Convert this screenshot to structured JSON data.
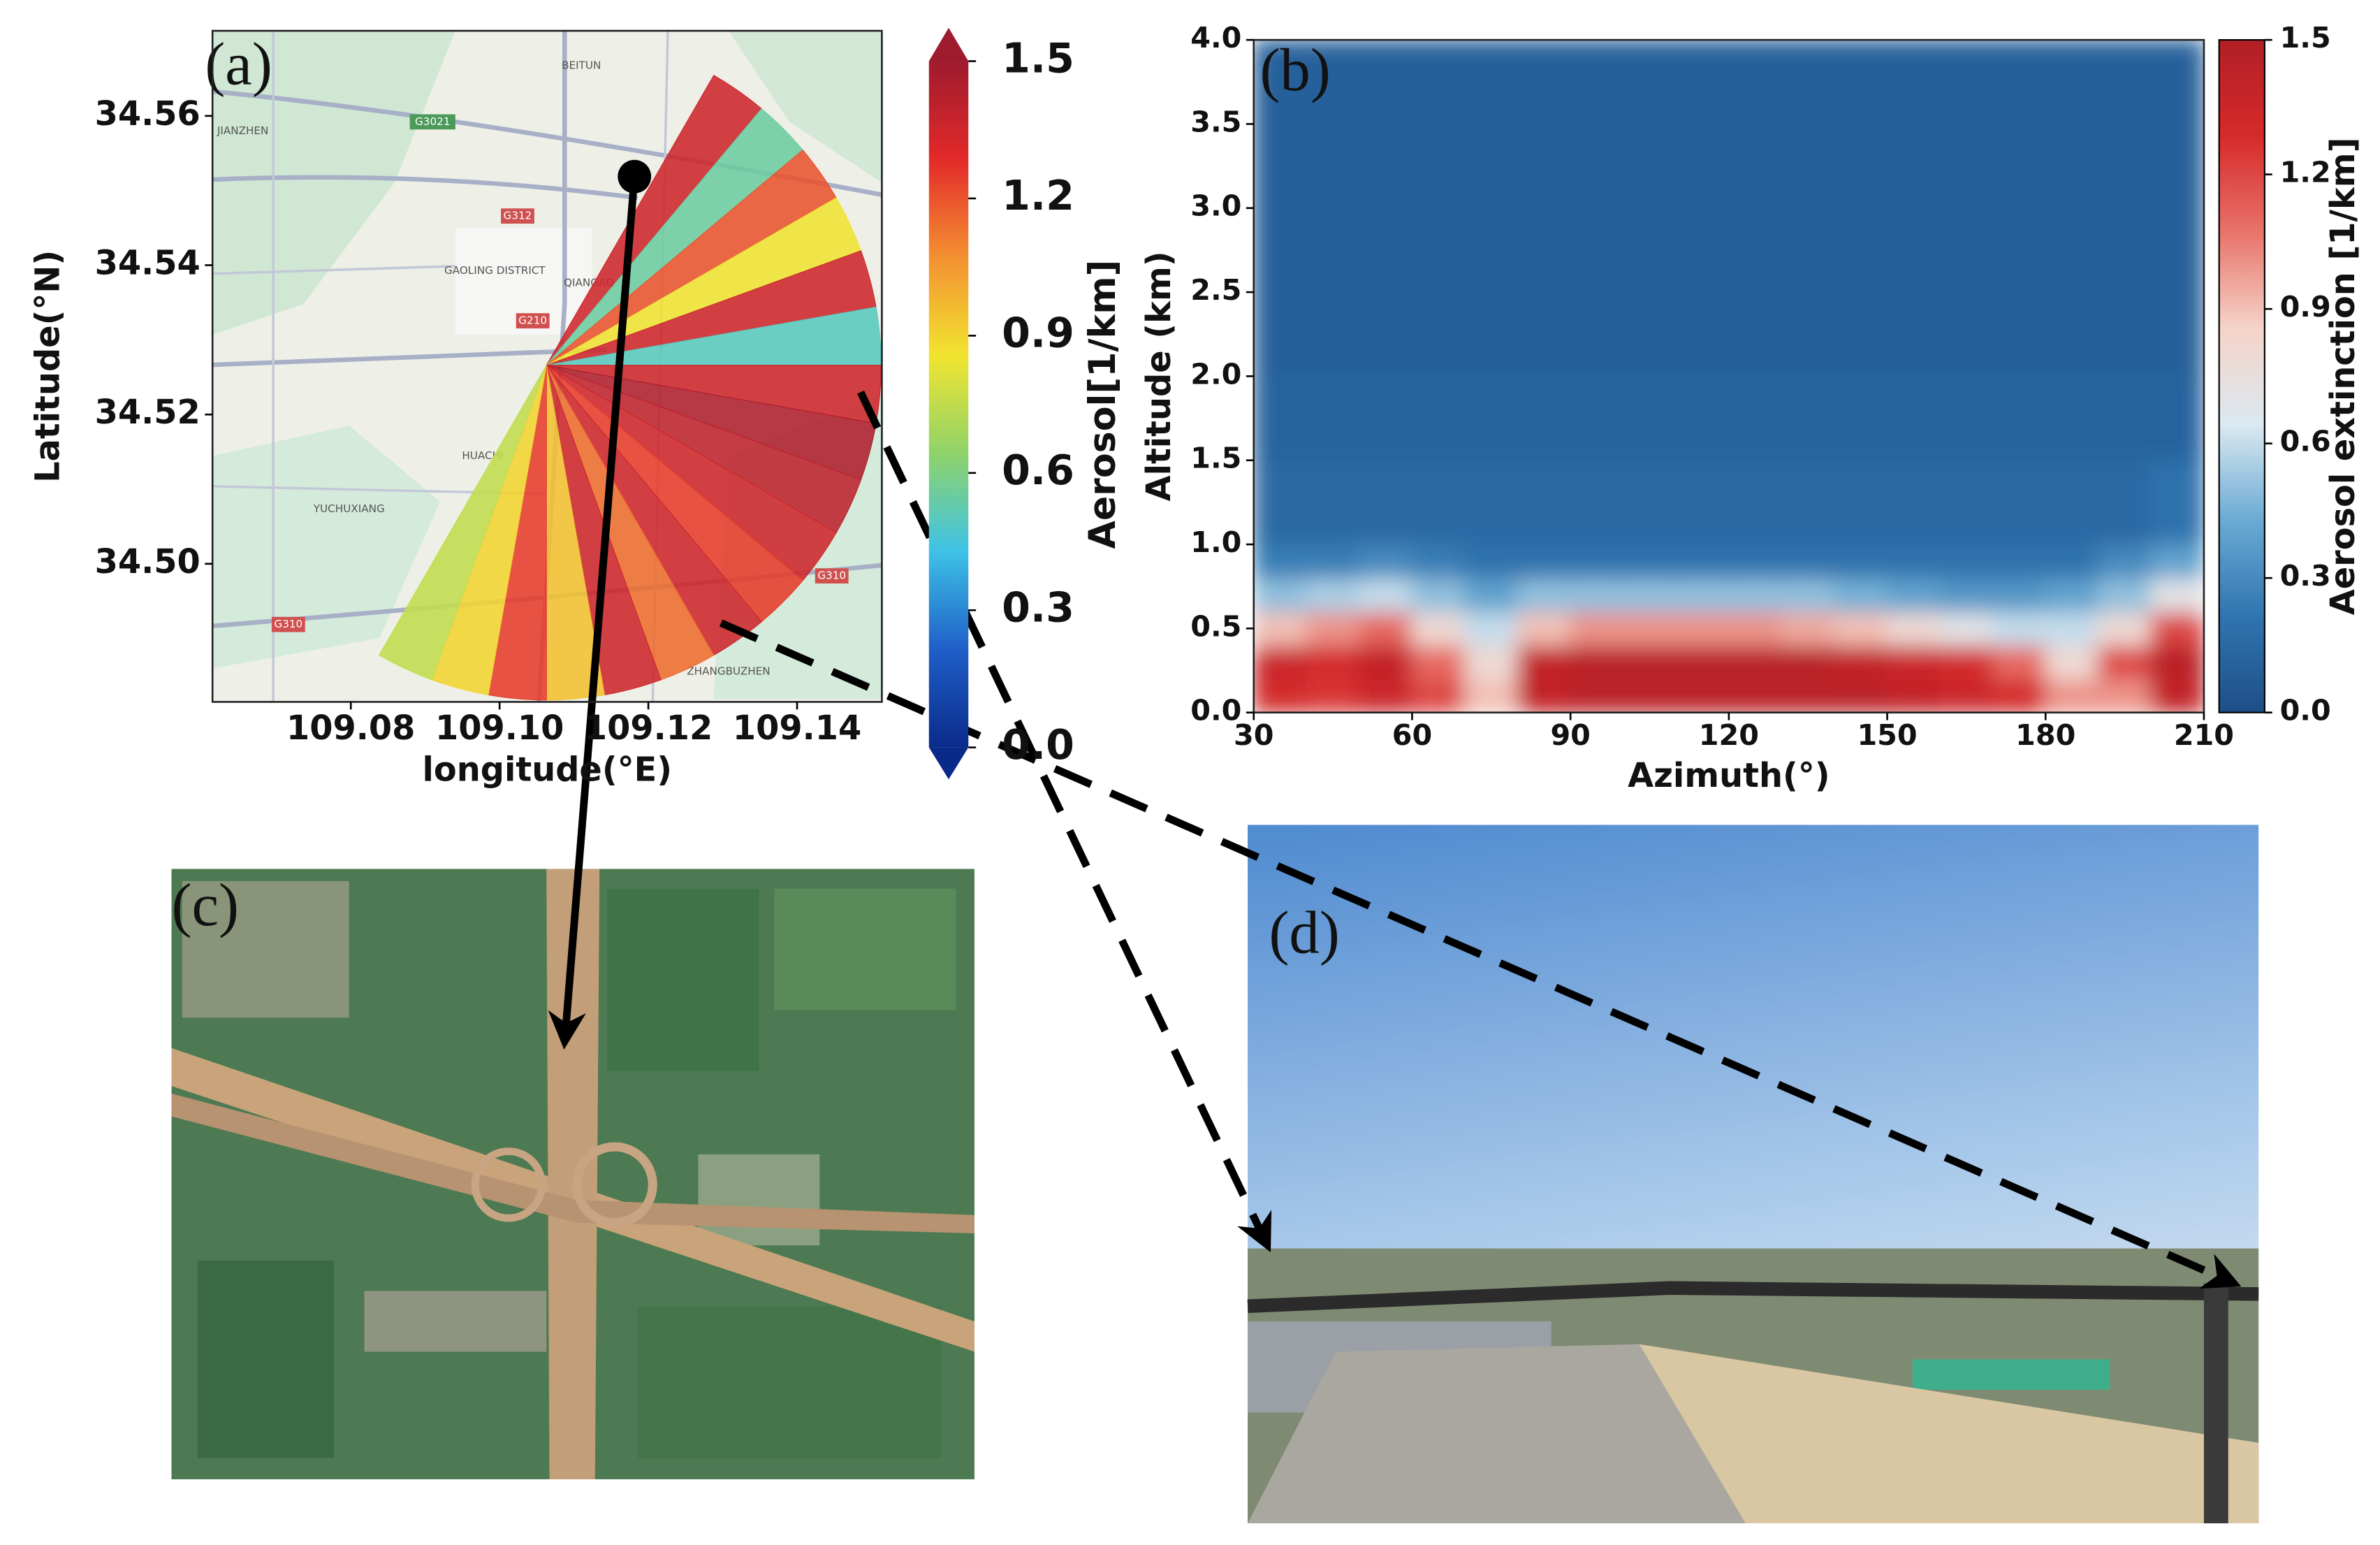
{
  "chart_data": [
    {
      "type": "sector-map",
      "panel_label": "(a)",
      "xlabel": "longitude(°E)",
      "ylabel": "Latitude(°N)",
      "xlim": [
        109.0614,
        109.1514
      ],
      "ylim": [
        34.4815,
        34.5714
      ],
      "xticks": [
        109.08,
        {
          "value": 109.1,
          "label": "109.10"
        },
        109.12,
        109.14
      ],
      "yticks": [
        34.56,
        34.54,
        34.52,
        {
          "value": 34.5,
          "label": "34.50"
        }
      ],
      "site": {
        "lon": 109.1063,
        "lat": 34.5266
      },
      "range_deg": 0.045,
      "azimuth_bins": [
        30,
        40,
        50,
        60,
        70,
        80,
        90,
        100,
        110,
        120,
        130,
        140,
        150,
        160,
        170,
        180,
        190,
        200,
        210
      ],
      "values": [
        1.35,
        0.55,
        1.2,
        0.85,
        1.35,
        0.5,
        1.35,
        1.45,
        1.4,
        1.35,
        1.25,
        1.35,
        1.15,
        1.35,
        0.95,
        1.25,
        0.9,
        0.75
      ],
      "point": {
        "lon": 109.1181,
        "lat": 34.5519
      },
      "colorbar": {
        "label": "Aerosol[1/km]",
        "clim": [
          0,
          1.5
        ],
        "ticks": [
          {
            "value": 0,
            "label": "0.0"
          },
          0.3,
          0.6,
          0.9,
          1.2,
          1.5
        ],
        "colormap": [
          "#0a2a8a",
          "#1f5fc8",
          "#3ec2e6",
          "#8fd36a",
          "#f2e430",
          "#f39031",
          "#e32a2a",
          "#9e1b2e"
        ]
      },
      "map_labels": [
        "BEITUN",
        "G3021",
        "JIANZHEN",
        "G312",
        "GAOLING DISTRICT",
        "QIANGAO",
        "G210",
        "HUACHI",
        "YUCHUXIANG",
        "G310",
        "G310",
        "ZHANGBUZHEN"
      ]
    },
    {
      "type": "heatmap",
      "panel_label": "(b)",
      "xlabel": "Azimuth(°)",
      "ylabel": "Altitude (km)",
      "xlim": [
        30,
        210
      ],
      "ylim": [
        0,
        4
      ],
      "xticks": [
        30,
        60,
        90,
        120,
        150,
        180,
        210
      ],
      "yticks": [
        {
          "value": 0,
          "label": "0.0"
        },
        0.5,
        {
          "value": 1,
          "label": "1.0"
        },
        1.5,
        {
          "value": 2,
          "label": "2.0"
        },
        2.5,
        {
          "value": 3,
          "label": "3.0"
        },
        3.5,
        {
          "value": 4,
          "label": "4.0"
        }
      ],
      "x_bins": [
        30,
        40,
        50,
        60,
        70,
        80,
        90,
        100,
        110,
        120,
        130,
        140,
        150,
        160,
        170,
        180,
        190,
        200,
        210
      ],
      "y_bins": [
        0,
        0.2,
        0.4,
        0.6,
        0.8,
        1,
        1.5,
        2,
        2.5,
        3,
        4
      ],
      "values": [
        [
          1.3,
          1.25,
          1.35,
          1.2,
          0.9,
          1.4,
          1.45,
          1.45,
          1.45,
          1.45,
          1.45,
          1.45,
          1.4,
          1.35,
          1.3,
          1.0,
          1.0,
          1.4
        ],
        [
          1.35,
          1.3,
          1.4,
          1.1,
          0.8,
          1.4,
          1.45,
          1.45,
          1.45,
          1.45,
          1.45,
          1.4,
          1.35,
          1.3,
          1.1,
          0.8,
          1.2,
          1.45
        ],
        [
          0.9,
          1.0,
          1.1,
          0.8,
          0.6,
          0.9,
          1.0,
          1.0,
          1.0,
          1.0,
          0.95,
          0.9,
          0.8,
          0.7,
          0.6,
          0.6,
          0.8,
          1.2
        ],
        [
          0.5,
          0.55,
          0.6,
          0.5,
          0.4,
          0.5,
          0.5,
          0.5,
          0.5,
          0.5,
          0.5,
          0.45,
          0.4,
          0.35,
          0.35,
          0.4,
          0.5,
          0.7
        ],
        [
          0.25,
          0.25,
          0.3,
          0.25,
          0.2,
          0.2,
          0.2,
          0.2,
          0.2,
          0.2,
          0.2,
          0.2,
          0.2,
          0.2,
          0.2,
          0.2,
          0.3,
          0.4
        ],
        [
          0.15,
          0.15,
          0.15,
          0.15,
          0.15,
          0.15,
          0.15,
          0.15,
          0.15,
          0.15,
          0.15,
          0.15,
          0.15,
          0.15,
          0.15,
          0.15,
          0.15,
          0.2
        ],
        [
          0.12,
          0.12,
          0.12,
          0.12,
          0.12,
          0.12,
          0.12,
          0.12,
          0.12,
          0.12,
          0.12,
          0.12,
          0.12,
          0.12,
          0.12,
          0.12,
          0.12,
          0.12
        ],
        [
          0.1,
          0.1,
          0.1,
          0.1,
          0.1,
          0.1,
          0.1,
          0.1,
          0.1,
          0.1,
          0.1,
          0.1,
          0.1,
          0.1,
          0.1,
          0.1,
          0.1,
          0.1
        ],
        [
          0.1,
          0.1,
          0.1,
          0.1,
          0.1,
          0.1,
          0.1,
          0.1,
          0.1,
          0.1,
          0.1,
          0.1,
          0.1,
          0.1,
          0.1,
          0.1,
          0.1,
          0.1
        ],
        [
          0.1,
          0.1,
          0.1,
          0.1,
          0.1,
          0.1,
          0.1,
          0.1,
          0.1,
          0.1,
          0.1,
          0.1,
          0.1,
          0.1,
          0.1,
          0.1,
          0.1,
          0.1
        ]
      ],
      "colorbar": {
        "label": "Aerosol extinction [1/km]",
        "clim": [
          0,
          1.5
        ],
        "ticks": [
          {
            "value": 0,
            "label": "0.0"
          },
          0.3,
          0.6,
          0.9,
          1.2,
          1.5
        ],
        "colormap": [
          "#1f4e87",
          "#2f75b0",
          "#6aaad3",
          "#dbe9f1",
          "#f5d3c8",
          "#e8736a",
          "#d62a2a",
          "#b01f26"
        ]
      }
    }
  ],
  "panels": {
    "c": {
      "label": "(c)"
    },
    "d": {
      "label": "(d)"
    }
  }
}
